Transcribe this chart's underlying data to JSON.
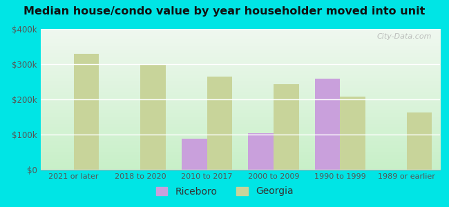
{
  "title": "Median house/condo value by year householder moved into unit",
  "categories": [
    "2021 or later",
    "2018 to 2020",
    "2010 to 2017",
    "2000 to 2009",
    "1990 to 1999",
    "1989 or earlier"
  ],
  "riceboro": [
    null,
    null,
    88000,
    103000,
    258000,
    null
  ],
  "georgia": [
    330000,
    298000,
    265000,
    243000,
    208000,
    163000
  ],
  "riceboro_color": "#c9a0dc",
  "georgia_color": "#c8d49a",
  "background_outer": "#00e5e5",
  "background_inner_top": "#f0f8f0",
  "background_inner_bottom": "#c8f0c8",
  "ylim": [
    0,
    400000
  ],
  "yticks": [
    0,
    100000,
    200000,
    300000,
    400000
  ],
  "ytick_labels": [
    "$0",
    "$100k",
    "$200k",
    "$300k",
    "$400k"
  ],
  "bar_width": 0.38,
  "legend_labels": [
    "Riceboro",
    "Georgia"
  ],
  "watermark": "City-Data.com"
}
